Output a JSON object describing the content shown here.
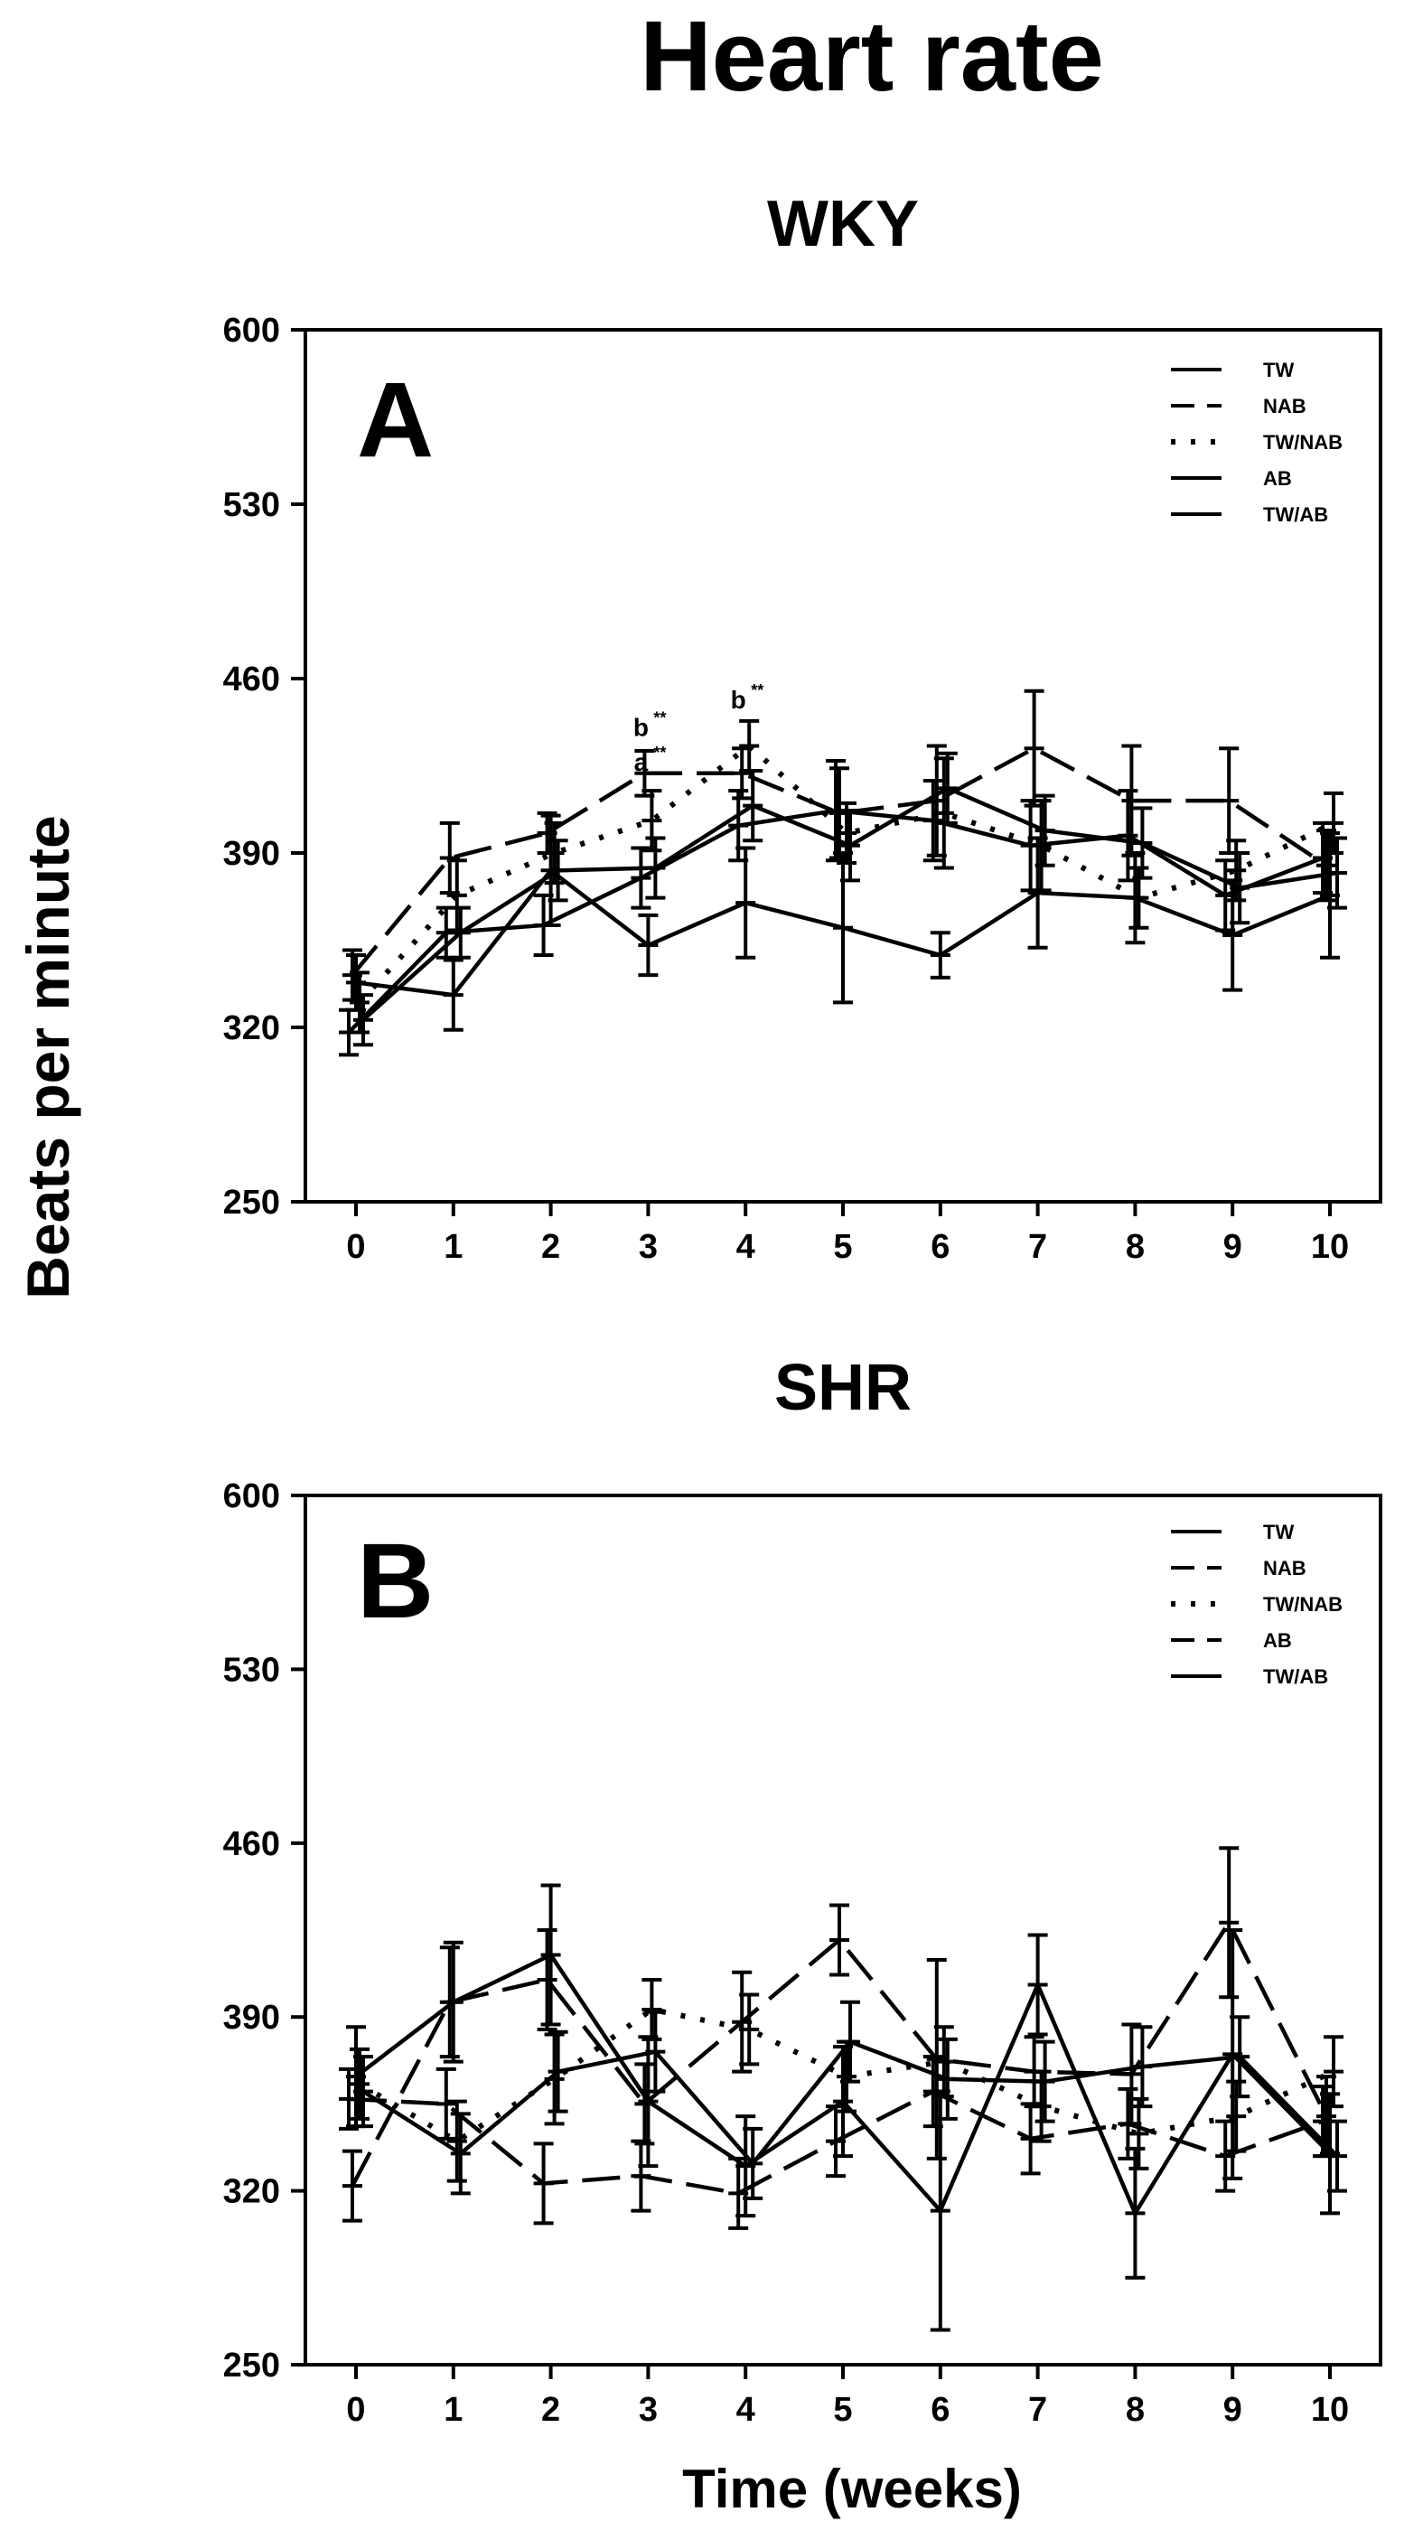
{
  "figure_title": "Heart rate",
  "ylabel": "Beats per minute",
  "xlabel": "Time (weeks)",
  "chart_data": [
    {
      "type": "line",
      "panel_letter": "A",
      "title": "WKY",
      "xlabel": "Time (weeks)",
      "ylabel": "Beats per minute",
      "x": [
        0,
        1,
        2,
        3,
        4,
        5,
        6,
        7,
        8,
        9,
        10
      ],
      "xticks": [
        "0",
        "1",
        "2",
        "3",
        "4",
        "5",
        "6",
        "7",
        "8",
        "9",
        "10"
      ],
      "yticks": [
        "250",
        "320",
        "390",
        "460",
        "530",
        "600"
      ],
      "ylim": [
        250,
        600
      ],
      "legend": "top-right",
      "series": [
        {
          "name": "TW",
          "dash": "solid",
          "values": [
            338,
            333,
            383,
            353,
            370,
            360,
            349,
            374,
            372,
            357,
            373
          ],
          "err": [
            11,
            14,
            22,
            12,
            22,
            30,
            9,
            22,
            18,
            22,
            25
          ]
        },
        {
          "name": "NAB",
          "dash": "long",
          "values": [
            341,
            388,
            398,
            422,
            422,
            406,
            411,
            432,
            411,
            411,
            385
          ],
          "err": [
            10,
            14,
            8,
            9,
            10,
            18,
            22,
            23,
            22,
            21,
            14
          ]
        },
        {
          "name": "TW/NAB",
          "dash": "dot",
          "values": [
            330,
            373,
            390,
            403,
            433,
            398,
            406,
            393,
            372,
            383,
            402
          ],
          "err": [
            12,
            14,
            12,
            12,
            10,
            12,
            22,
            18,
            12,
            12,
            12
          ]
        },
        {
          "name": "AB",
          "dash": "solid",
          "values": [
            318,
            358,
            361,
            380,
            401,
            407,
            403,
            393,
            397,
            373,
            388
          ],
          "err": [
            9,
            10,
            12,
            12,
            14,
            20,
            16,
            18,
            18,
            14,
            14
          ]
        },
        {
          "name": "TW/AB",
          "dash": "solid",
          "values": [
            323,
            358,
            383,
            384,
            409,
            393,
            416,
            399,
            394,
            376,
            382
          ],
          "err": [
            10,
            10,
            12,
            12,
            14,
            14,
            14,
            14,
            14,
            14,
            14
          ]
        }
      ],
      "annotations": [
        {
          "x": 3,
          "y": 423,
          "text": "a",
          "sup": "**"
        },
        {
          "x": 3,
          "y": 437,
          "text": "b",
          "sup": "**"
        },
        {
          "x": 4,
          "y": 448,
          "text": "b",
          "sup": "**"
        }
      ]
    },
    {
      "type": "line",
      "panel_letter": "B",
      "title": "SHR",
      "xlabel": "Time (weeks)",
      "ylabel": "Beats per minute",
      "x": [
        0,
        1,
        2,
        3,
        4,
        5,
        6,
        7,
        8,
        9,
        10
      ],
      "xticks": [
        "0",
        "1",
        "2",
        "3",
        "4",
        "5",
        "6",
        "7",
        "8",
        "9",
        "10"
      ],
      "yticks": [
        "250",
        "320",
        "390",
        "460",
        "530",
        "600"
      ],
      "ylim": [
        250,
        600
      ],
      "legend": "top-right",
      "series": [
        {
          "name": "TW",
          "dash": "solid",
          "values": [
            366,
            396,
            415,
            356,
            330,
            356,
            312,
            403,
            311,
            375,
            335
          ],
          "err": [
            20,
            24,
            28,
            26,
            20,
            22,
            48,
            20,
            26,
            50,
            24
          ]
        },
        {
          "name": "NAB",
          "dash": "long",
          "values": [
            322,
            396,
            405,
            355,
            388,
            421,
            373,
            368,
            367,
            428,
            350
          ],
          "err": [
            14,
            22,
            20,
            16,
            20,
            14,
            40,
            14,
            20,
            30,
            16
          ]
        },
        {
          "name": "TW/NAB",
          "dash": "dot",
          "values": [
            363,
            340,
            365,
            393,
            385,
            366,
            372,
            354,
            343,
            350,
            368
          ],
          "err": [
            14,
            16,
            18,
            12,
            14,
            14,
            14,
            14,
            14,
            14,
            14
          ]
        },
        {
          "name": "AB",
          "dash": "long",
          "values": [
            357,
            355,
            323,
            326,
            319,
            340,
            360,
            341,
            347,
            334,
            348
          ],
          "err": [
            12,
            14,
            16,
            14,
            14,
            14,
            14,
            14,
            14,
            14,
            14
          ]
        },
        {
          "name": "TW/AB",
          "dash": "solid",
          "values": [
            360,
            335,
            368,
            376,
            331,
            380,
            365,
            364,
            370,
            374,
            334
          ],
          "err": [
            14,
            16,
            16,
            16,
            14,
            16,
            16,
            16,
            16,
            16,
            14
          ]
        }
      ],
      "annotations": []
    }
  ]
}
